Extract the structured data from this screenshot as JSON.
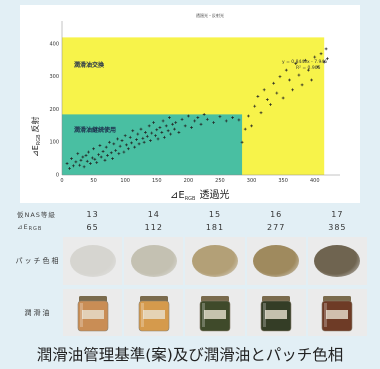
{
  "chart_data": {
    "type": "scatter",
    "title": "透過光・反射光",
    "x_ticks": [
      0,
      50,
      100,
      150,
      200,
      250,
      300,
      350,
      400
    ],
    "y_ticks": [
      0,
      100,
      200,
      300,
      400
    ],
    "xlim": [
      0,
      440
    ],
    "ylim": [
      0,
      470
    ],
    "xlabel_main": "⊿E",
    "xlabel_sub": "RGB",
    "xlabel_suffix": "透過光",
    "ylabel_main": "⊿E",
    "ylabel_sub": "RGB",
    "ylabel_suffix": "反射",
    "regions": [
      {
        "label": "潤滑油交換",
        "x": [
          0,
          415
        ],
        "y": [
          0,
          420
        ],
        "color": "#f7f34a"
      },
      {
        "label": "潤滑油継続使用",
        "x": [
          0,
          285
        ],
        "y": [
          0,
          185
        ],
        "color": "#49bfa2"
      }
    ],
    "equation": "y = 0.8440x - 7.946",
    "r2": "R² = 0.905",
    "points": [
      [
        8,
        35
      ],
      [
        12,
        20
      ],
      [
        15,
        50
      ],
      [
        18,
        28
      ],
      [
        22,
        40
      ],
      [
        25,
        65
      ],
      [
        28,
        30
      ],
      [
        30,
        45
      ],
      [
        33,
        55
      ],
      [
        35,
        25
      ],
      [
        38,
        60
      ],
      [
        40,
        42
      ],
      [
        42,
        70
      ],
      [
        45,
        35
      ],
      [
        48,
        52
      ],
      [
        50,
        80
      ],
      [
        52,
        48
      ],
      [
        55,
        38
      ],
      [
        58,
        62
      ],
      [
        60,
        90
      ],
      [
        62,
        55
      ],
      [
        65,
        72
      ],
      [
        68,
        45
      ],
      [
        70,
        85
      ],
      [
        72,
        60
      ],
      [
        75,
        100
      ],
      [
        78,
        68
      ],
      [
        80,
        50
      ],
      [
        82,
        95
      ],
      [
        85,
        75
      ],
      [
        88,
        110
      ],
      [
        90,
        65
      ],
      [
        92,
        88
      ],
      [
        95,
        105
      ],
      [
        98,
        70
      ],
      [
        100,
        120
      ],
      [
        102,
        92
      ],
      [
        105,
        80
      ],
      [
        108,
        115
      ],
      [
        110,
        98
      ],
      [
        112,
        135
      ],
      [
        115,
        85
      ],
      [
        118,
        108
      ],
      [
        120,
        125
      ],
      [
        122,
        95
      ],
      [
        125,
        140
      ],
      [
        128,
        112
      ],
      [
        130,
        100
      ],
      [
        132,
        130
      ],
      [
        135,
        118
      ],
      [
        138,
        150
      ],
      [
        140,
        105
      ],
      [
        142,
        128
      ],
      [
        145,
        160
      ],
      [
        148,
        120
      ],
      [
        150,
        138
      ],
      [
        152,
        110
      ],
      [
        155,
        145
      ],
      [
        158,
        130
      ],
      [
        160,
        165
      ],
      [
        162,
        115
      ],
      [
        165,
        150
      ],
      [
        168,
        135
      ],
      [
        170,
        175
      ],
      [
        172,
        125
      ],
      [
        175,
        155
      ],
      [
        178,
        140
      ],
      [
        180,
        160
      ],
      [
        185,
        130
      ],
      [
        190,
        170
      ],
      [
        195,
        150
      ],
      [
        200,
        180
      ],
      [
        205,
        145
      ],
      [
        210,
        165
      ],
      [
        215,
        175
      ],
      [
        220,
        155
      ],
      [
        225,
        185
      ],
      [
        230,
        170
      ],
      [
        240,
        160
      ],
      [
        250,
        178
      ],
      [
        260,
        165
      ],
      [
        270,
        175
      ],
      [
        280,
        168
      ],
      [
        285,
        100
      ],
      [
        290,
        140
      ],
      [
        295,
        180
      ],
      [
        300,
        150
      ],
      [
        305,
        210
      ],
      [
        310,
        240
      ],
      [
        315,
        190
      ],
      [
        320,
        260
      ],
      [
        325,
        230
      ],
      [
        330,
        215
      ],
      [
        335,
        280
      ],
      [
        340,
        250
      ],
      [
        345,
        300
      ],
      [
        350,
        235
      ],
      [
        355,
        320
      ],
      [
        360,
        290
      ],
      [
        365,
        260
      ],
      [
        370,
        340
      ],
      [
        375,
        305
      ],
      [
        380,
        275
      ],
      [
        385,
        350
      ],
      [
        390,
        320
      ],
      [
        395,
        290
      ],
      [
        400,
        360
      ],
      [
        405,
        330
      ],
      [
        410,
        370
      ],
      [
        415,
        345
      ],
      [
        418,
        385
      ],
      [
        420,
        355
      ]
    ]
  },
  "table": {
    "nas_label": "仮NAS等級",
    "de_label_main": "⊿E",
    "de_label_sub": "RGB",
    "nas_values": [
      "13",
      "14",
      "15",
      "16",
      "17"
    ],
    "de_values": [
      "65",
      "112",
      "181",
      "277",
      "385"
    ],
    "patch_label": "パッチ色相",
    "oil_label": "潤滑油",
    "patch_colors": [
      "#d6d5d0",
      "#c4c1b2",
      "#b3a077",
      "#9f8a5e",
      "#6f6450"
    ],
    "oil_colors": [
      "#c98d55",
      "#d59a4c",
      "#3f4a2a",
      "#343d26",
      "#6e3b26"
    ]
  },
  "caption": "潤滑油管理基準(案)及び潤滑油とパッチ色相"
}
